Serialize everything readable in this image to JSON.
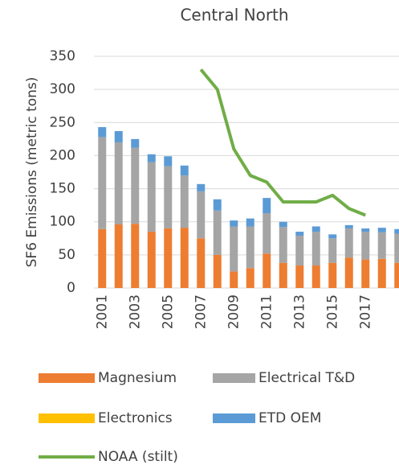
{
  "chart_data": {
    "type": "bar",
    "stacked": true,
    "title": "Central North",
    "y_label": "SF6 Emissions (metric tons)",
    "categories": [
      "2001",
      null,
      "2003",
      null,
      "2005",
      null,
      "2007",
      null,
      "2009",
      null,
      "2011",
      null,
      "2013",
      null,
      "2015",
      null,
      "2017",
      null,
      null
    ],
    "series": [
      {
        "name": "Magnesium",
        "color": "#ed7d31",
        "type": "bar",
        "values": [
          89,
          96,
          97,
          85,
          90,
          91,
          75,
          50,
          25,
          30,
          52,
          38,
          34,
          34,
          38,
          46,
          43,
          44,
          38
        ]
      },
      {
        "name": "Electrical T&D",
        "color": "#a5a5a5",
        "type": "bar",
        "values": [
          139,
          124,
          115,
          105,
          94,
          79,
          71,
          67,
          68,
          63,
          61,
          54,
          45,
          51,
          37,
          44,
          42,
          40,
          44
        ]
      },
      {
        "name": "Electronics",
        "color": "#ffc000",
        "type": "bar",
        "values": [
          0,
          0,
          0,
          0,
          0,
          0,
          0,
          0,
          0,
          0,
          0,
          0,
          0,
          0,
          0,
          0,
          0,
          0,
          0
        ]
      },
      {
        "name": "ETD OEM",
        "color": "#5b9bd5",
        "type": "bar",
        "values": [
          15,
          17,
          13,
          12,
          15,
          15,
          11,
          17,
          9,
          12,
          23,
          8,
          6,
          8,
          6,
          5,
          5,
          7,
          7
        ]
      },
      {
        "name": "NOAA (stilt)",
        "color": "#70ad47",
        "type": "line",
        "values": [
          null,
          null,
          null,
          null,
          null,
          null,
          330,
          300,
          210,
          170,
          160,
          130,
          130,
          130,
          140,
          120,
          110,
          null,
          null
        ]
      }
    ],
    "ylim": [
      0,
      350
    ],
    "yticks": [
      0,
      50,
      100,
      150,
      200,
      250,
      300,
      350
    ],
    "grid": true
  }
}
